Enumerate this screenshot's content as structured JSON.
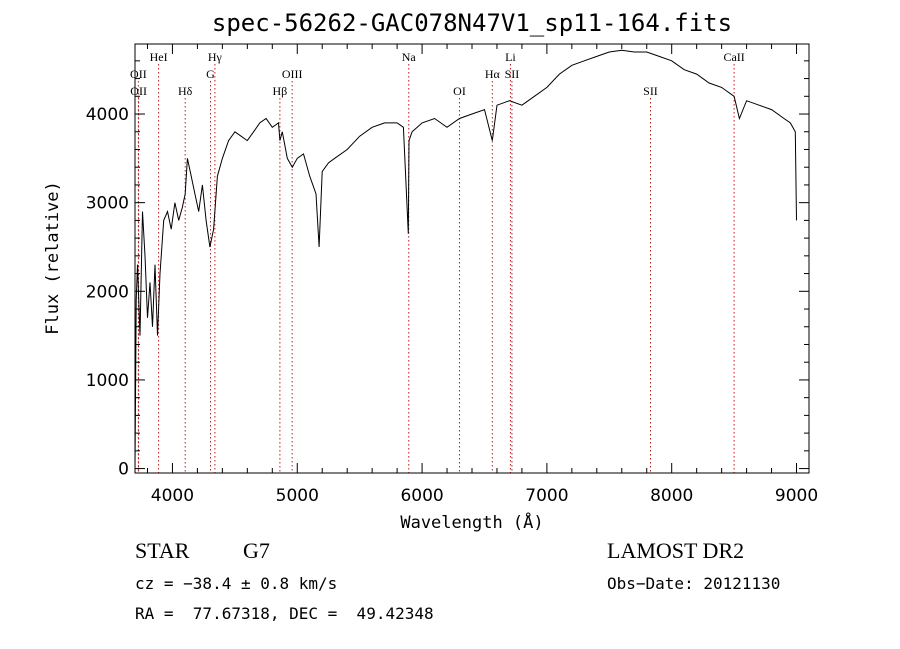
{
  "chart_data": {
    "type": "line",
    "title": "spec-56262-GAC078N47V1_sp11-164.fits",
    "xlabel": "Wavelength (Å)",
    "ylabel": "Flux (relative)",
    "xlim": [
      3700,
      9100
    ],
    "ylim": [
      -50,
      4790
    ],
    "xticks": [
      4000,
      5000,
      6000,
      7000,
      8000,
      9000
    ],
    "yticks": [
      0,
      1000,
      2000,
      3000,
      4000
    ],
    "grid": false,
    "series": [
      {
        "x": [
          3700,
          3710,
          3720,
          3740,
          3760,
          3780,
          3800,
          3820,
          3840,
          3860,
          3880,
          3900,
          3930,
          3960,
          3990,
          4020,
          4050,
          4080,
          4102,
          4120,
          4150,
          4180,
          4210,
          4240,
          4270,
          4300,
          4330,
          4360,
          4400,
          4450,
          4500,
          4550,
          4600,
          4650,
          4700,
          4750,
          4800,
          4850,
          4861,
          4880,
          4920,
          4960,
          5000,
          5050,
          5100,
          5150,
          5175,
          5200,
          5250,
          5300,
          5400,
          5500,
          5600,
          5700,
          5800,
          5850,
          5890,
          5895,
          5920,
          6000,
          6100,
          6150,
          6200,
          6300,
          6400,
          6500,
          6563,
          6600,
          6700,
          6800,
          6900,
          7000,
          7100,
          7200,
          7300,
          7400,
          7500,
          7600,
          7700,
          7800,
          7900,
          8000,
          8100,
          8200,
          8300,
          8400,
          8500,
          8542,
          8600,
          8700,
          8800,
          8900,
          8950,
          8990,
          9000
        ],
        "values": [
          0,
          1900,
          2300,
          1500,
          2900,
          2400,
          1700,
          2100,
          1600,
          2300,
          1500,
          2200,
          2800,
          2900,
          2700,
          3000,
          2800,
          2950,
          3100,
          3500,
          3300,
          3100,
          2900,
          3200,
          2800,
          2500,
          2700,
          3300,
          3500,
          3700,
          3800,
          3750,
          3700,
          3800,
          3900,
          3950,
          3850,
          3900,
          3700,
          3800,
          3500,
          3400,
          3500,
          3550,
          3300,
          3100,
          2500,
          3350,
          3450,
          3500,
          3600,
          3750,
          3850,
          3900,
          3900,
          3850,
          2650,
          3700,
          3800,
          3900,
          3950,
          3900,
          3850,
          3950,
          4000,
          4050,
          3700,
          4100,
          4150,
          4100,
          4200,
          4300,
          4450,
          4550,
          4600,
          4650,
          4700,
          4720,
          4700,
          4700,
          4650,
          4600,
          4500,
          4450,
          4350,
          4300,
          4200,
          3950,
          4150,
          4100,
          4050,
          3950,
          3900,
          3800,
          2800
        ]
      }
    ],
    "line_markers": [
      {
        "label": "OII",
        "wavelength": 3727,
        "row": 3
      },
      {
        "label": "OII",
        "wavelength": 3729,
        "row": 5
      },
      {
        "label": "HeI",
        "wavelength": 3889,
        "row": 1
      },
      {
        "label": "Hδ",
        "wavelength": 4102,
        "row": 5
      },
      {
        "label": "Hγ",
        "wavelength": 4340,
        "row": 1
      },
      {
        "label": "G",
        "wavelength": 4305,
        "row": 3
      },
      {
        "label": "OIII",
        "wavelength": 4959,
        "row": 3
      },
      {
        "label": "Hβ",
        "wavelength": 4861,
        "row": 5
      },
      {
        "label": "Na",
        "wavelength": 5893,
        "row": 1
      },
      {
        "label": "OI",
        "wavelength": 6300,
        "row": 5
      },
      {
        "label": "Li",
        "wavelength": 6708,
        "row": 1
      },
      {
        "label": "Hα",
        "wavelength": 6563,
        "row": 3
      },
      {
        "label": "SII",
        "wavelength": 6720,
        "row": 3
      },
      {
        "label": "SII",
        "wavelength": 7830,
        "row": 5
      },
      {
        "label": "CaII",
        "wavelength": 8500,
        "row": 1
      }
    ],
    "marker_color": "#b22222",
    "line_color": "#000000"
  },
  "info": {
    "class": "STAR",
    "subclass": "G7",
    "survey": "LAMOST DR2",
    "cz": "cz = −38.4 ± 0.8 km/s",
    "obs_date": "Obs−Date: 20121130",
    "coords": "RA =  77.67318, DEC =  49.42348"
  }
}
